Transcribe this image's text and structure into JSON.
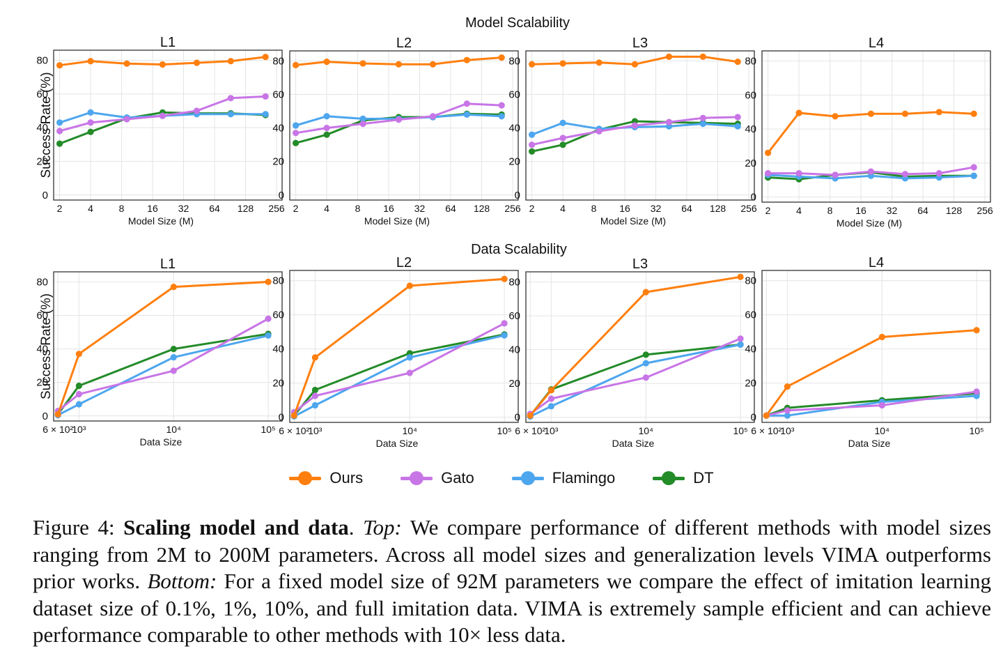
{
  "colors": {
    "ours": "#ff7f0e",
    "gato": "#c875e6",
    "flamingo": "#4da6ee",
    "dt": "#238b28",
    "grid": "#e4e4e4",
    "axis": "#222222"
  },
  "sections": {
    "model_title": "Model Scalability",
    "data_title": "Data Scalability"
  },
  "legend": [
    {
      "key": "ours",
      "label": "Ours",
      "color": "#ff7f0e"
    },
    {
      "key": "gato",
      "label": "Gato",
      "color": "#c875e6"
    },
    {
      "key": "flamingo",
      "label": "Flamingo",
      "color": "#4da6ee"
    },
    {
      "key": "dt",
      "label": "DT",
      "color": "#238b28"
    }
  ],
  "caption": {
    "label": "Figure 4: ",
    "bold": "Scaling model and data",
    "after_bold": ". ",
    "top_label": "Top:",
    "top_text": " We compare performance of different methods with model sizes ranging from 2M to 200M parameters. Across all model sizes and generalization levels VIMA outperforms prior works. ",
    "bottom_label": "Bottom:",
    "bottom_text": " For a fixed model size of 92M parameters we compare the effect of imitation learning dataset size of 0.1%, 1%, 10%, and full imitation data. VIMA is extremely sample efficient and can achieve performance comparable to other methods with 10× less data."
  },
  "chart_data": [
    {
      "type": "line",
      "group": "model",
      "title": "L1",
      "xlabel": "Model Size (M)",
      "ylabel": "Success Rate (%)",
      "xscale": "log2",
      "xlim": [
        1.75,
        290
      ],
      "ylim": [
        -3,
        86
      ],
      "xticks": [
        2,
        4,
        8,
        16,
        32,
        64,
        128,
        256
      ],
      "xticklabels": [
        "2",
        "4",
        "8",
        "16",
        "32",
        "64",
        "128",
        "256"
      ],
      "yticks": [
        0,
        20,
        40,
        60,
        80
      ],
      "yticklabels": [
        "0",
        "20",
        "40",
        "60",
        "80"
      ],
      "x": [
        2,
        4,
        9,
        20,
        43,
        92,
        200
      ],
      "series": [
        {
          "name": "Ours",
          "key": "ours",
          "values": [
            77,
            79.5,
            78,
            77.5,
            78.5,
            79.5,
            82
          ]
        },
        {
          "name": "Gato",
          "key": "gato",
          "values": [
            38,
            43,
            45,
            47,
            50,
            57.5,
            58.5
          ]
        },
        {
          "name": "Flamingo",
          "key": "flamingo",
          "values": [
            43,
            49,
            46,
            47,
            48,
            48,
            48
          ]
        },
        {
          "name": "DT",
          "key": "dt",
          "values": [
            30.5,
            37.5,
            45.5,
            49,
            48.5,
            48.5,
            47.5
          ]
        }
      ]
    },
    {
      "type": "line",
      "group": "model",
      "title": "L2",
      "xlabel": "Model Size (M)",
      "ylabel": "",
      "xscale": "log2",
      "xlim": [
        1.75,
        290
      ],
      "ylim": [
        -3,
        86
      ],
      "xticks": [
        2,
        4,
        8,
        16,
        32,
        64,
        128,
        256
      ],
      "xticklabels": [
        "2",
        "4",
        "8",
        "16",
        "32",
        "64",
        "128",
        "256"
      ],
      "yticks": [
        0,
        20,
        40,
        60,
        80
      ],
      "yticklabels": [
        "0",
        "20",
        "40",
        "60",
        "80"
      ],
      "x": [
        2,
        4,
        9,
        20,
        43,
        92,
        200
      ],
      "series": [
        {
          "name": "Ours",
          "key": "ours",
          "values": [
            77.5,
            79.5,
            78.5,
            78,
            78,
            80.5,
            82
          ]
        },
        {
          "name": "Gato",
          "key": "gato",
          "values": [
            37,
            40,
            42.5,
            45,
            47,
            54.5,
            53.5
          ]
        },
        {
          "name": "Flamingo",
          "key": "flamingo",
          "values": [
            41.5,
            47,
            45.5,
            45.5,
            46.5,
            48,
            47
          ]
        },
        {
          "name": "DT",
          "key": "dt",
          "values": [
            31,
            36,
            44.5,
            46.5,
            46.5,
            48.5,
            48
          ]
        }
      ]
    },
    {
      "type": "line",
      "group": "model",
      "title": "L3",
      "xlabel": "Model Size (M)",
      "ylabel": "",
      "xscale": "log2",
      "xlim": [
        1.75,
        290
      ],
      "ylim": [
        -3,
        86
      ],
      "xticks": [
        2,
        4,
        8,
        16,
        32,
        64,
        128,
        256
      ],
      "xticklabels": [
        "2",
        "4",
        "8",
        "16",
        "32",
        "64",
        "128",
        "256"
      ],
      "yticks": [
        0,
        20,
        40,
        60,
        80
      ],
      "yticklabels": [
        "0",
        "20",
        "40",
        "60",
        "80"
      ],
      "x": [
        2,
        4,
        9,
        20,
        43,
        92,
        200
      ],
      "series": [
        {
          "name": "Ours",
          "key": "ours",
          "values": [
            78,
            78.5,
            79,
            78,
            82.5,
            82.5,
            79.5
          ]
        },
        {
          "name": "Gato",
          "key": "gato",
          "values": [
            30,
            34,
            38,
            41.5,
            43.5,
            46,
            46.5
          ]
        },
        {
          "name": "Flamingo",
          "key": "flamingo",
          "values": [
            36,
            43,
            39.5,
            40.5,
            41,
            42.5,
            41
          ]
        },
        {
          "name": "DT",
          "key": "dt",
          "values": [
            26,
            30,
            39,
            44,
            43.5,
            43,
            42.5
          ]
        }
      ]
    },
    {
      "type": "line",
      "group": "model",
      "title": "L4",
      "xlabel": "Model Size (M)",
      "ylabel": "",
      "xscale": "log2",
      "xlim": [
        1.75,
        290
      ],
      "ylim": [
        -3,
        86
      ],
      "xticks": [
        2,
        4,
        8,
        16,
        32,
        64,
        128,
        256
      ],
      "xticklabels": [
        "2",
        "4",
        "8",
        "16",
        "32",
        "64",
        "128",
        "256"
      ],
      "yticks": [
        0,
        20,
        40,
        60,
        80
      ],
      "yticklabels": [
        "0",
        "20",
        "40",
        "60",
        "80"
      ],
      "x": [
        2,
        4,
        9,
        20,
        43,
        92,
        200
      ],
      "series": [
        {
          "name": "Ours",
          "key": "ours",
          "values": [
            26,
            49.5,
            47.5,
            49,
            49,
            50,
            49
          ]
        },
        {
          "name": "Gato",
          "key": "gato",
          "values": [
            14,
            14,
            13,
            15,
            13.5,
            14,
            17.5
          ]
        },
        {
          "name": "Flamingo",
          "key": "flamingo",
          "values": [
            13,
            12,
            11,
            12.5,
            11,
            11.5,
            12.5
          ]
        },
        {
          "name": "DT",
          "key": "dt",
          "values": [
            11.5,
            10.5,
            13,
            14.5,
            12,
            12.5,
            12.5
          ]
        }
      ]
    },
    {
      "type": "line",
      "group": "data",
      "title": "L1",
      "xlabel": "Data Size",
      "ylabel": "Success Rate (%)",
      "xscale": "log10",
      "xlim": [
        540,
        140000
      ],
      "ylim": [
        -3,
        86
      ],
      "xticks": [
        600,
        1000,
        10000,
        100000
      ],
      "xticklabels": [
        "6 × 10²",
        "10³",
        "10⁴",
        "10⁵"
      ],
      "yticks": [
        0,
        20,
        40,
        60,
        80
      ],
      "yticklabels": [
        "0",
        "20",
        "40",
        "60",
        "80"
      ],
      "x": [
        600,
        1000,
        10000,
        100000
      ],
      "series": [
        {
          "name": "Ours",
          "key": "ours",
          "values": [
            1,
            37,
            77,
            80
          ]
        },
        {
          "name": "Gato",
          "key": "gato",
          "values": [
            3,
            13,
            27,
            58
          ]
        },
        {
          "name": "Flamingo",
          "key": "flamingo",
          "values": [
            0.5,
            7,
            35,
            48
          ]
        },
        {
          "name": "DT",
          "key": "dt",
          "values": [
            1,
            18,
            40,
            49
          ]
        }
      ]
    },
    {
      "type": "line",
      "group": "data",
      "title": "L2",
      "xlabel": "Data Size",
      "ylabel": "",
      "xscale": "log10",
      "xlim": [
        540,
        140000
      ],
      "ylim": [
        -3,
        86
      ],
      "xticks": [
        600,
        1000,
        10000,
        100000
      ],
      "xticklabels": [
        "6 × 10²",
        "10³",
        "10⁴",
        "10⁵"
      ],
      "yticks": [
        0,
        20,
        40,
        60,
        80
      ],
      "yticklabels": [
        "0",
        "20",
        "40",
        "60",
        "80"
      ],
      "x": [
        600,
        1000,
        10000,
        100000
      ],
      "series": [
        {
          "name": "Ours",
          "key": "ours",
          "values": [
            1,
            35,
            77,
            81
          ]
        },
        {
          "name": "Gato",
          "key": "gato",
          "values": [
            3,
            12.5,
            26,
            55
          ]
        },
        {
          "name": "Flamingo",
          "key": "flamingo",
          "values": [
            0.5,
            7,
            35,
            48
          ]
        },
        {
          "name": "DT",
          "key": "dt",
          "values": [
            1,
            16,
            37.5,
            48.5
          ]
        }
      ]
    },
    {
      "type": "line",
      "group": "data",
      "title": "L3",
      "xlabel": "Data Size",
      "ylabel": "",
      "xscale": "log10",
      "xlim": [
        540,
        140000
      ],
      "ylim": [
        -3,
        86
      ],
      "xticks": [
        600,
        1000,
        10000,
        100000
      ],
      "xticklabels": [
        "6 × 10²",
        "10³",
        "10⁴",
        "10⁵"
      ],
      "yticks": [
        0,
        20,
        40,
        60,
        80
      ],
      "yticklabels": [
        "0",
        "20",
        "40",
        "60",
        "80"
      ],
      "x": [
        600,
        1000,
        10000,
        100000
      ],
      "series": [
        {
          "name": "Ours",
          "key": "ours",
          "values": [
            1,
            16,
            74,
            83
          ]
        },
        {
          "name": "Gato",
          "key": "gato",
          "values": [
            2,
            11,
            23.5,
            46.5
          ]
        },
        {
          "name": "Flamingo",
          "key": "flamingo",
          "values": [
            0.5,
            6.5,
            32,
            43
          ]
        },
        {
          "name": "DT",
          "key": "dt",
          "values": [
            1,
            16.5,
            37,
            43
          ]
        }
      ]
    },
    {
      "type": "line",
      "group": "data",
      "title": "L4",
      "xlabel": "Data Size",
      "ylabel": "",
      "xscale": "log10",
      "xlim": [
        540,
        140000
      ],
      "ylim": [
        -3,
        86
      ],
      "xticks": [
        600,
        1000,
        10000,
        100000
      ],
      "xticklabels": [
        "6 × 10²",
        "10³",
        "10⁴",
        "10⁵"
      ],
      "yticks": [
        0,
        20,
        40,
        60,
        80
      ],
      "yticklabels": [
        "0",
        "20",
        "40",
        "60",
        "80"
      ],
      "x": [
        600,
        1000,
        10000,
        100000
      ],
      "series": [
        {
          "name": "Ours",
          "key": "ours",
          "values": [
            1,
            18,
            47,
            51
          ]
        },
        {
          "name": "Gato",
          "key": "gato",
          "values": [
            1,
            4,
            7,
            15
          ]
        },
        {
          "name": "Flamingo",
          "key": "flamingo",
          "values": [
            1,
            1,
            9,
            12.5
          ]
        },
        {
          "name": "DT",
          "key": "dt",
          "values": [
            1,
            5.5,
            10,
            14
          ]
        }
      ]
    }
  ]
}
